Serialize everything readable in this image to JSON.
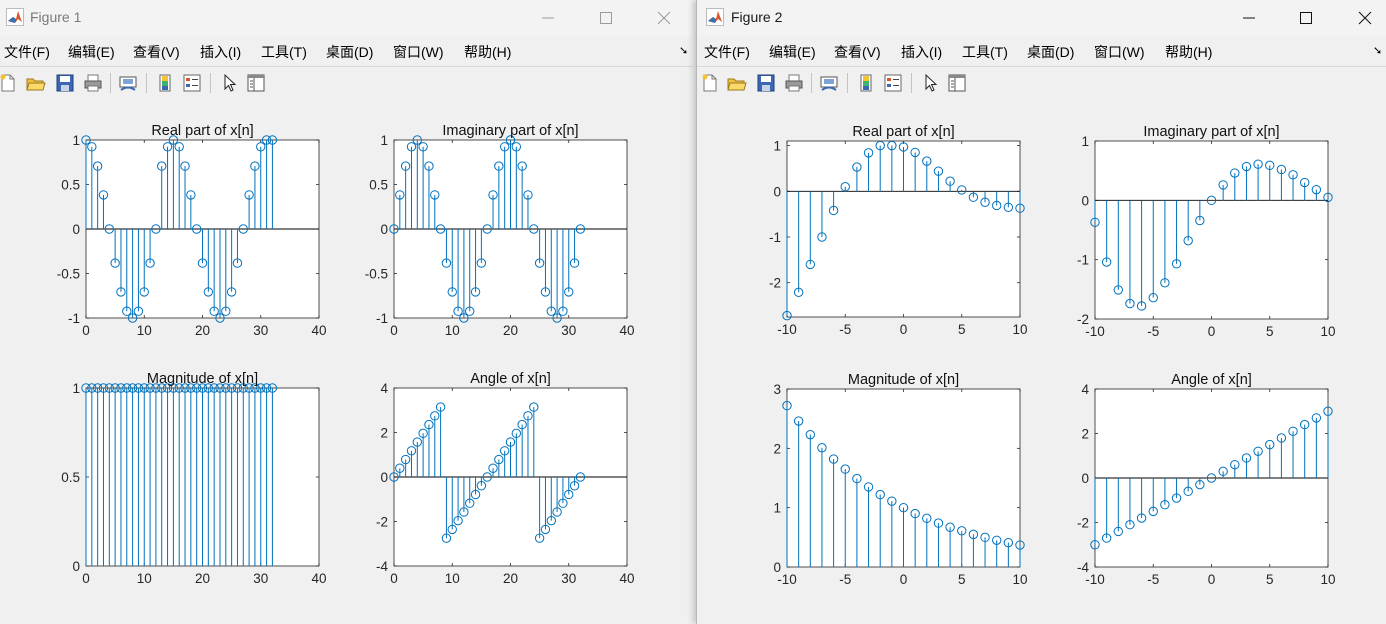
{
  "windows": [
    {
      "title": "Figure 1",
      "menu": [
        "文件(F)",
        "编辑(E)",
        "查看(V)",
        "插入(I)",
        "工具(T)",
        "桌面(D)",
        "窗口(W)",
        "帮助(H)"
      ],
      "toolbar_icons": [
        "new-figure-icon",
        "open-file-icon",
        "save-icon",
        "print-icon",
        "link-plot-icon",
        "insert-colorbar-icon",
        "insert-legend-icon",
        "edit-plot-icon",
        "property-inspector-icon"
      ]
    },
    {
      "title": "Figure 2",
      "menu": [
        "文件(F)",
        "编辑(E)",
        "查看(V)",
        "插入(I)",
        "工具(T)",
        "桌面(D)",
        "窗口(W)",
        "帮助(H)"
      ],
      "toolbar_icons": [
        "new-figure-icon",
        "open-file-icon",
        "save-icon",
        "print-icon",
        "link-plot-icon",
        "insert-colorbar-icon",
        "insert-legend-icon",
        "edit-plot-icon",
        "property-inspector-icon"
      ]
    }
  ],
  "colors": {
    "stem": "#0072bd",
    "axes_bg": "#ffffff",
    "figure_bg": "#f0f0f0"
  },
  "chart_data": [
    {
      "figure": "Figure 1",
      "type": "stem",
      "title": "Real part of x[n]",
      "xlim": [
        0,
        40
      ],
      "ylim": [
        -1,
        1
      ],
      "xticks": [
        0,
        10,
        20,
        30,
        40
      ],
      "xtick_labels": [
        "0",
        "10",
        "20",
        "30",
        "40"
      ],
      "yticks": [
        -1,
        -0.5,
        0,
        0.5,
        1
      ],
      "ytick_labels": [
        "-1",
        "-0.5",
        "0",
        "0.5",
        "1"
      ],
      "x": [
        0,
        1,
        2,
        3,
        4,
        5,
        6,
        7,
        8,
        9,
        10,
        11,
        12,
        13,
        14,
        15,
        16,
        17,
        18,
        19,
        20,
        21,
        22,
        23,
        24,
        25,
        26,
        27,
        28,
        29,
        30,
        31,
        32
      ],
      "y": [
        1,
        0.924,
        0.707,
        0.383,
        0,
        -0.383,
        -0.707,
        -0.924,
        -1,
        -0.924,
        -0.707,
        -0.383,
        0,
        0.707,
        0.924,
        1,
        0.924,
        0.707,
        0.383,
        0,
        -0.383,
        -0.707,
        -0.924,
        -1,
        -0.924,
        -0.707,
        -0.383,
        0,
        0.383,
        0.707,
        0.924,
        1,
        1
      ]
    },
    {
      "figure": "Figure 1",
      "type": "stem",
      "title": "Imaginary part of x[n]",
      "xlim": [
        0,
        40
      ],
      "ylim": [
        -1,
        1
      ],
      "xticks": [
        0,
        10,
        20,
        30,
        40
      ],
      "xtick_labels": [
        "0",
        "10",
        "20",
        "30",
        "40"
      ],
      "yticks": [
        -1,
        -0.5,
        0,
        0.5,
        1
      ],
      "ytick_labels": [
        "-1",
        "-0.5",
        "0",
        "0.5",
        "1"
      ],
      "x": [
        0,
        1,
        2,
        3,
        4,
        5,
        6,
        7,
        8,
        9,
        10,
        11,
        12,
        13,
        14,
        15,
        16,
        17,
        18,
        19,
        20,
        21,
        22,
        23,
        24,
        25,
        26,
        27,
        28,
        29,
        30,
        31,
        32
      ],
      "y": [
        0,
        0.383,
        0.707,
        0.924,
        1,
        0.924,
        0.707,
        0.383,
        0,
        -0.383,
        -0.707,
        -0.924,
        -1,
        -0.924,
        -0.707,
        -0.383,
        0,
        0.383,
        0.707,
        0.924,
        1,
        0.924,
        0.707,
        0.383,
        0,
        -0.383,
        -0.707,
        -0.924,
        -1,
        -0.924,
        -0.707,
        -0.383,
        0
      ]
    },
    {
      "figure": "Figure 1",
      "type": "stem",
      "title": "Magnitude of x[n]",
      "xlim": [
        0,
        40
      ],
      "ylim": [
        0,
        1
      ],
      "xticks": [
        0,
        10,
        20,
        30,
        40
      ],
      "xtick_labels": [
        "0",
        "10",
        "20",
        "30",
        "40"
      ],
      "yticks": [
        0,
        0.5,
        1
      ],
      "ytick_labels": [
        "0",
        "0.5",
        "1"
      ],
      "x": [
        0,
        1,
        2,
        3,
        4,
        5,
        6,
        7,
        8,
        9,
        10,
        11,
        12,
        13,
        14,
        15,
        16,
        17,
        18,
        19,
        20,
        21,
        22,
        23,
        24,
        25,
        26,
        27,
        28,
        29,
        30,
        31,
        32
      ],
      "y": [
        1,
        1,
        1,
        1,
        1,
        1,
        1,
        1,
        1,
        1,
        1,
        1,
        1,
        1,
        1,
        1,
        1,
        1,
        1,
        1,
        1,
        1,
        1,
        1,
        1,
        1,
        1,
        1,
        1,
        1,
        1,
        1,
        1
      ]
    },
    {
      "figure": "Figure 1",
      "type": "stem",
      "title": "Angle of x[n]",
      "xlim": [
        0,
        40
      ],
      "ylim": [
        -4,
        4
      ],
      "xticks": [
        0,
        10,
        20,
        30,
        40
      ],
      "xtick_labels": [
        "0",
        "10",
        "20",
        "30",
        "40"
      ],
      "yticks": [
        -4,
        -2,
        0,
        2,
        4
      ],
      "ytick_labels": [
        "-4",
        "-2",
        "0",
        "2",
        "4"
      ],
      "x": [
        0,
        1,
        2,
        3,
        4,
        5,
        6,
        7,
        8,
        9,
        10,
        11,
        12,
        13,
        14,
        15,
        16,
        17,
        18,
        19,
        20,
        21,
        22,
        23,
        24,
        25,
        26,
        27,
        28,
        29,
        30,
        31,
        32
      ],
      "y": [
        0,
        0.393,
        0.785,
        1.178,
        1.571,
        1.963,
        2.356,
        2.749,
        3.142,
        -2.749,
        -2.356,
        -1.963,
        -1.571,
        -1.178,
        -0.785,
        -0.393,
        0,
        0.393,
        0.785,
        1.178,
        1.571,
        1.963,
        2.356,
        2.749,
        3.142,
        -2.749,
        -2.356,
        -1.963,
        -1.571,
        -1.178,
        -0.785,
        -0.393,
        0
      ]
    },
    {
      "figure": "Figure 2",
      "type": "stem",
      "title": "Real part of x[n]",
      "xlim": [
        -10,
        10
      ],
      "ylim": [
        -2.75,
        1.1
      ],
      "xticks": [
        -10,
        -5,
        0,
        5,
        10
      ],
      "xtick_labels": [
        "-10",
        "-5",
        "0",
        "5",
        "10"
      ],
      "yticks": [
        -2,
        -1,
        0,
        1
      ],
      "ytick_labels": [
        "-2",
        "-1",
        "0",
        "1"
      ],
      "x": [
        -10,
        -9,
        -8,
        -7,
        -6,
        -5,
        -4,
        -3,
        -2,
        -1,
        0,
        1,
        2,
        3,
        4,
        5,
        6,
        7,
        8,
        9,
        10
      ],
      "y": [
        -2.72,
        -2.21,
        -1.6,
        -1.0,
        -0.42,
        0.1,
        0.53,
        0.84,
        1.0,
        1.0,
        0.97,
        0.85,
        0.66,
        0.44,
        0.22,
        0.03,
        -0.13,
        -0.24,
        -0.31,
        -0.35,
        -0.37
      ]
    },
    {
      "figure": "Figure 2",
      "type": "stem",
      "title": "Imaginary part of x[n]",
      "xlim": [
        -10,
        10
      ],
      "ylim": [
        -2,
        1
      ],
      "xticks": [
        -10,
        -5,
        0,
        5,
        10
      ],
      "xtick_labels": [
        "-10",
        "-5",
        "0",
        "5",
        "10"
      ],
      "yticks": [
        -2,
        -1,
        0,
        1
      ],
      "ytick_labels": [
        "-2",
        "-1",
        "0",
        "1"
      ],
      "x": [
        -10,
        -9,
        -8,
        -7,
        -6,
        -5,
        -4,
        -3,
        -2,
        -1,
        0,
        1,
        2,
        3,
        4,
        5,
        6,
        7,
        8,
        9,
        10
      ],
      "y": [
        -0.37,
        -1.04,
        -1.51,
        -1.74,
        -1.78,
        -1.64,
        -1.39,
        -1.07,
        -0.68,
        -0.34,
        0,
        0.26,
        0.46,
        0.57,
        0.61,
        0.59,
        0.52,
        0.43,
        0.3,
        0.18,
        0.05
      ]
    },
    {
      "figure": "Figure 2",
      "type": "stem",
      "title": "Magnitude of x[n]",
      "xlim": [
        -10,
        10
      ],
      "ylim": [
        0,
        3
      ],
      "xticks": [
        -10,
        -5,
        0,
        5,
        10
      ],
      "xtick_labels": [
        "-10",
        "-5",
        "0",
        "5",
        "10"
      ],
      "yticks": [
        0,
        1,
        2,
        3
      ],
      "ytick_labels": [
        "0",
        "1",
        "2",
        "3"
      ],
      "x": [
        -10,
        -9,
        -8,
        -7,
        -6,
        -5,
        -4,
        -3,
        -2,
        -1,
        0,
        1,
        2,
        3,
        4,
        5,
        6,
        7,
        8,
        9,
        10
      ],
      "y": [
        2.72,
        2.46,
        2.23,
        2.01,
        1.82,
        1.65,
        1.49,
        1.35,
        1.22,
        1.11,
        1.0,
        0.9,
        0.82,
        0.74,
        0.67,
        0.61,
        0.55,
        0.5,
        0.45,
        0.41,
        0.37
      ]
    },
    {
      "figure": "Figure 2",
      "type": "stem",
      "title": "Angle of x[n]",
      "xlim": [
        -10,
        10
      ],
      "ylim": [
        -4,
        4
      ],
      "xticks": [
        -10,
        -5,
        0,
        5,
        10
      ],
      "xtick_labels": [
        "-10",
        "-5",
        "0",
        "5",
        "10"
      ],
      "yticks": [
        -4,
        -2,
        0,
        2,
        4
      ],
      "ytick_labels": [
        "-4",
        "-2",
        "0",
        "2",
        "4"
      ],
      "x": [
        -10,
        -9,
        -8,
        -7,
        -6,
        -5,
        -4,
        -3,
        -2,
        -1,
        0,
        1,
        2,
        3,
        4,
        5,
        6,
        7,
        8,
        9,
        10
      ],
      "y": [
        -3.0,
        -2.7,
        -2.4,
        -2.1,
        -1.8,
        -1.5,
        -1.2,
        -0.9,
        -0.6,
        -0.3,
        0,
        0.3,
        0.6,
        0.9,
        1.2,
        1.5,
        1.8,
        2.1,
        2.4,
        2.7,
        3.0
      ]
    }
  ]
}
